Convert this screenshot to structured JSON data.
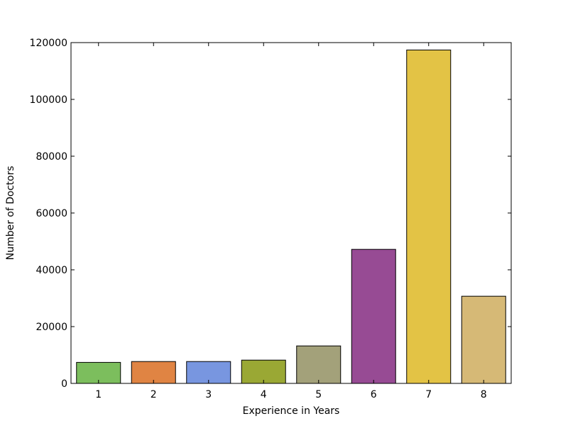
{
  "chart_data": {
    "type": "bar",
    "title": "",
    "xlabel": "Experience in Years",
    "ylabel": "Number of Doctors",
    "categories": [
      "1",
      "2",
      "3",
      "4",
      "5",
      "6",
      "7",
      "8"
    ],
    "values": [
      7400,
      7700,
      7700,
      8200,
      13200,
      47200,
      117400,
      30700
    ],
    "colors": [
      "#7cbe5d",
      "#e08443",
      "#7896e0",
      "#9aa834",
      "#a3a17a",
      "#974b94",
      "#e3c345",
      "#d6b976"
    ],
    "ylim": [
      0,
      120000
    ],
    "yticks": [
      "0",
      "20000",
      "40000",
      "60000",
      "80000",
      "100000",
      "120000"
    ],
    "grid": false,
    "legend": "none"
  }
}
